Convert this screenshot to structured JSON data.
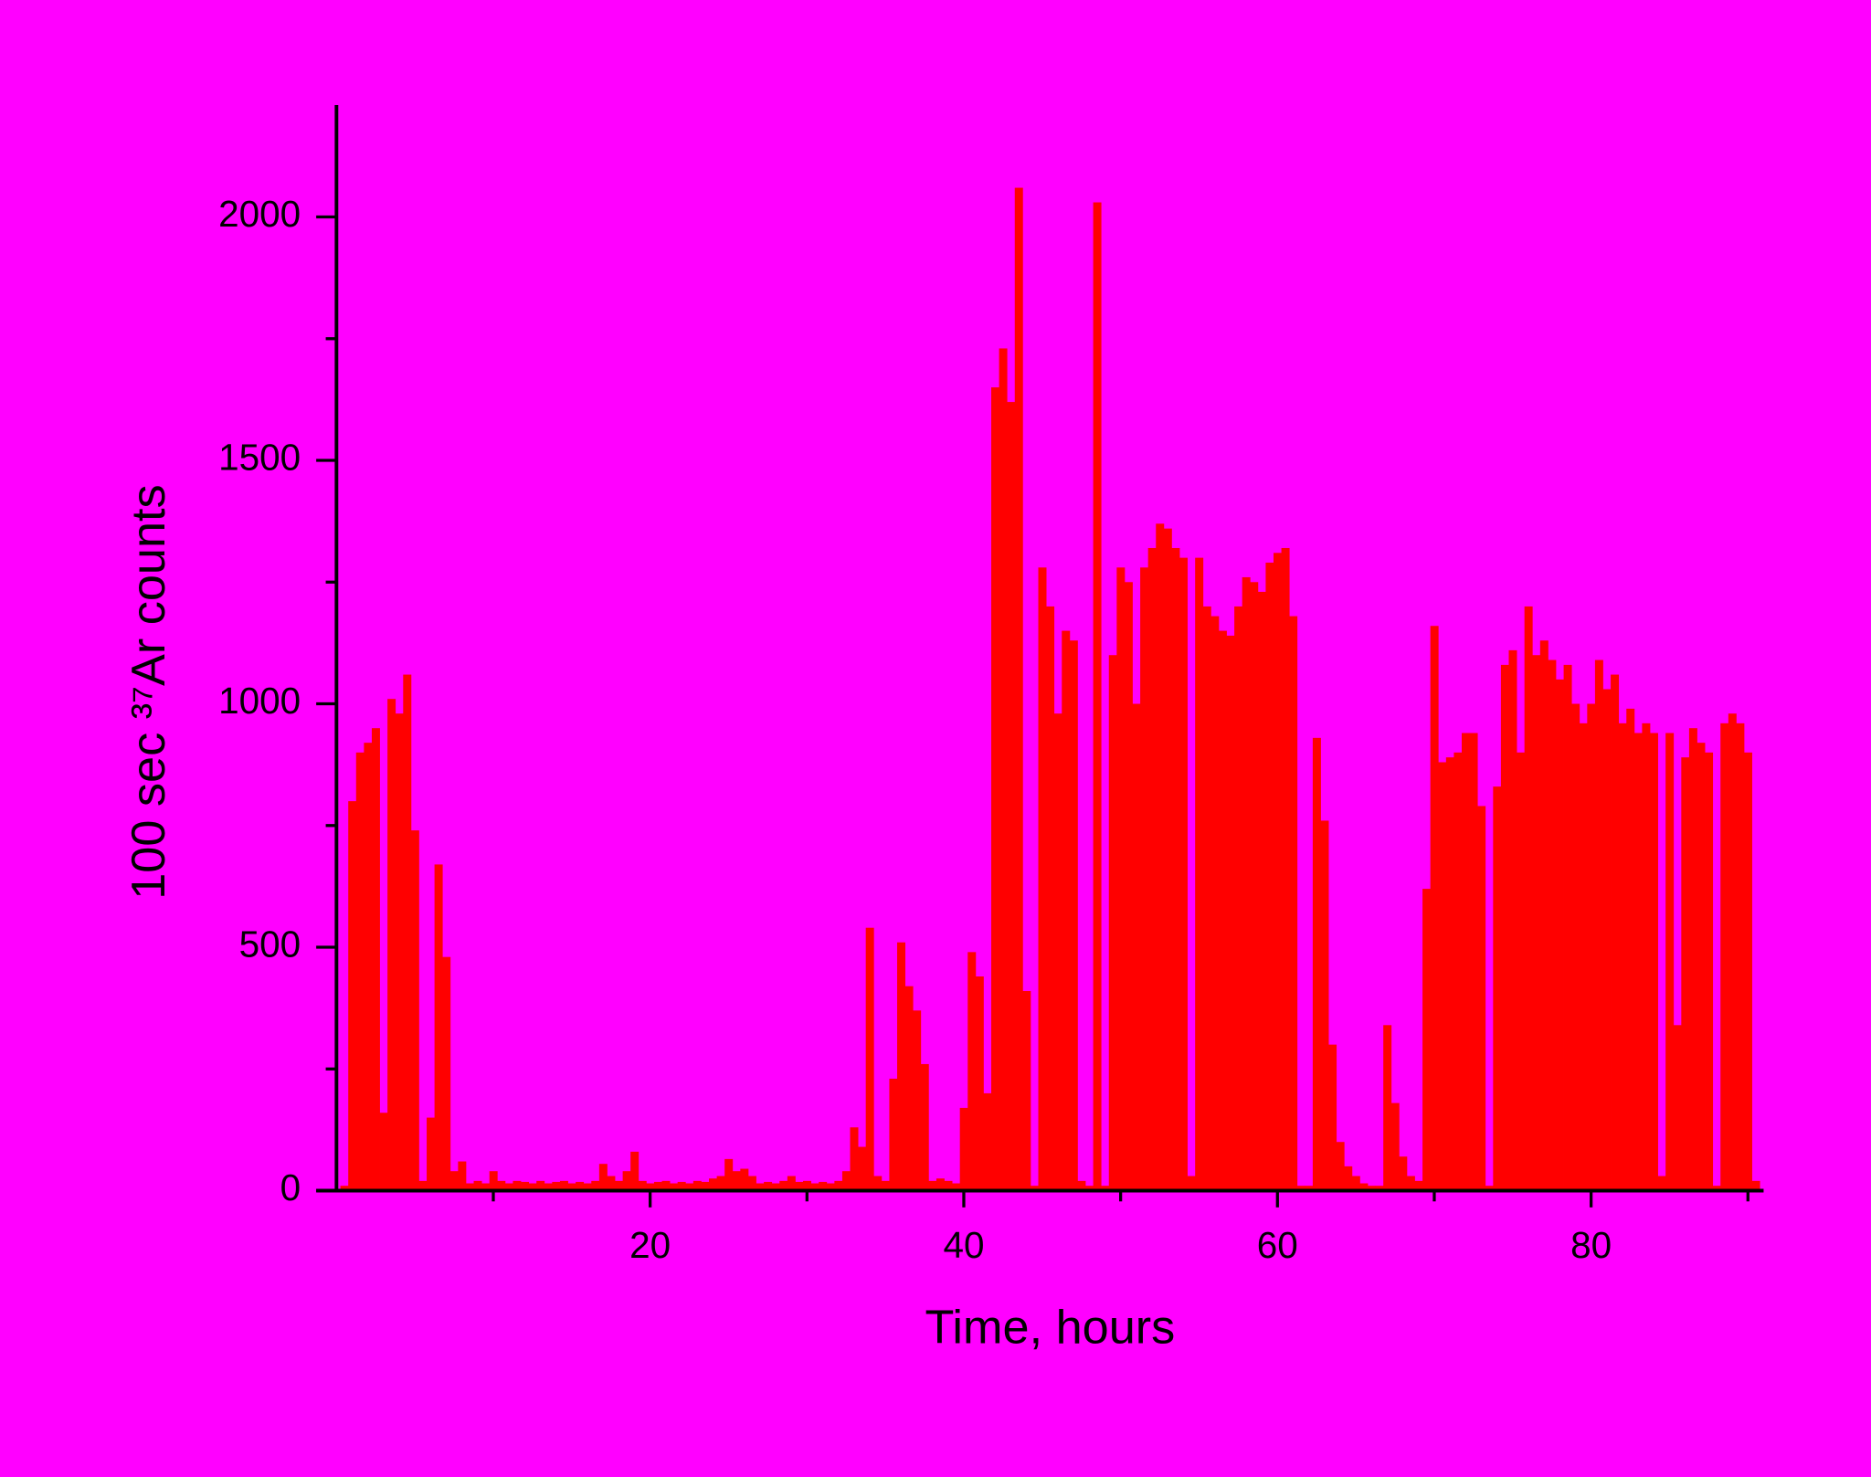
{
  "chart_data": {
    "type": "bar",
    "xlabel": "Time, hours",
    "ylabel": "100 sec ³⁷Ar counts",
    "color": "#ff0000",
    "background": "#ff00ff",
    "xlim": [
      0,
      91
    ],
    "ylim": [
      0,
      2230
    ],
    "xticks": [
      20,
      40,
      60,
      80
    ],
    "xminor_ticks": [
      10,
      30,
      50,
      70,
      90
    ],
    "yticks": [
      0,
      500,
      1000,
      1500,
      2000
    ],
    "yminor_ticks": [
      250,
      750,
      1250,
      1750
    ],
    "x": [
      0.5,
      1,
      1.5,
      2,
      2.5,
      3,
      3.5,
      4,
      4.5,
      5,
      5.5,
      6,
      6.5,
      7,
      7.5,
      8,
      8.5,
      9,
      9.5,
      10,
      10.5,
      11,
      11.5,
      12,
      12.5,
      13,
      13.5,
      14,
      14.5,
      15,
      15.5,
      16,
      16.5,
      17,
      17.5,
      18,
      18.5,
      19,
      19.5,
      20,
      20.5,
      21,
      21.5,
      22,
      22.5,
      23,
      23.5,
      24,
      24.5,
      25,
      25.5,
      26,
      26.5,
      27,
      27.5,
      28,
      28.5,
      29,
      29.5,
      30,
      30.5,
      31,
      31.5,
      32,
      32.5,
      33,
      33.5,
      34,
      34.5,
      35,
      35.5,
      36,
      36.5,
      37,
      37.5,
      38,
      38.5,
      39,
      39.5,
      40,
      40.5,
      41,
      41.5,
      42,
      42.5,
      43,
      43.5,
      44,
      44.5,
      45,
      45.5,
      46,
      46.5,
      47,
      47.5,
      48,
      48.5,
      49,
      49.5,
      50,
      50.5,
      51,
      51.5,
      52,
      52.5,
      53,
      53.5,
      54,
      54.5,
      55,
      55.5,
      56,
      56.5,
      57,
      57.5,
      58,
      58.5,
      59,
      59.5,
      60,
      60.5,
      61,
      61.5,
      62,
      62.5,
      63,
      63.5,
      64,
      64.5,
      65,
      65.5,
      66,
      66.5,
      67,
      67.5,
      68,
      68.5,
      69,
      69.5,
      70,
      70.5,
      71,
      71.5,
      72,
      72.5,
      73,
      73.5,
      74,
      74.5,
      75,
      75.5,
      76,
      76.5,
      77,
      77.5,
      78,
      78.5,
      79,
      79.5,
      80,
      80.5,
      81,
      81.5,
      82,
      82.5,
      83,
      83.5,
      84,
      84.5,
      85,
      85.5,
      86,
      86.5,
      87,
      87.5,
      88,
      88.5,
      89,
      89.5,
      90,
      90.5
    ],
    "values": [
      10,
      800,
      900,
      920,
      950,
      160,
      1010,
      980,
      1060,
      740,
      20,
      150,
      670,
      480,
      40,
      60,
      15,
      20,
      15,
      40,
      20,
      15,
      20,
      18,
      15,
      20,
      15,
      18,
      20,
      15,
      18,
      15,
      20,
      55,
      30,
      20,
      40,
      80,
      20,
      15,
      18,
      20,
      15,
      18,
      15,
      20,
      18,
      25,
      30,
      65,
      40,
      45,
      30,
      15,
      18,
      15,
      20,
      30,
      18,
      20,
      15,
      18,
      15,
      20,
      40,
      130,
      90,
      540,
      30,
      20,
      230,
      510,
      420,
      370,
      260,
      20,
      25,
      20,
      15,
      170,
      490,
      440,
      200,
      1650,
      1730,
      1620,
      2060,
      410,
      10,
      1280,
      1200,
      980,
      1150,
      1130,
      20,
      10,
      2030,
      10,
      1100,
      1280,
      1250,
      1000,
      1280,
      1320,
      1370,
      1360,
      1320,
      1300,
      30,
      1300,
      1200,
      1180,
      1150,
      1140,
      1200,
      1260,
      1250,
      1230,
      1290,
      1310,
      1320,
      1180,
      10,
      10,
      930,
      760,
      300,
      100,
      50,
      30,
      15,
      10,
      10,
      340,
      180,
      70,
      30,
      20,
      620,
      1160,
      880,
      890,
      900,
      940,
      940,
      790,
      10,
      830,
      1080,
      1110,
      900,
      1200,
      1100,
      1130,
      1090,
      1050,
      1080,
      1000,
      960,
      1000,
      1090,
      1030,
      1060,
      960,
      990,
      940,
      960,
      940,
      30,
      940,
      340,
      890,
      950,
      920,
      900,
      10,
      960,
      980,
      960,
      900,
      20
    ]
  }
}
